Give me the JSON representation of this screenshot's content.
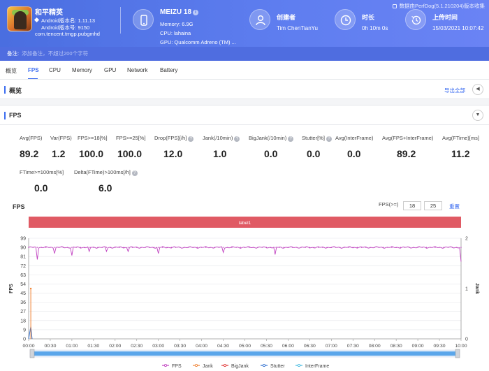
{
  "app": {
    "name": "和平精英",
    "android_version": "Android版本名: 1.11.13",
    "android_code": "Android版本号: 9150",
    "package": "com.tencent.tmgp.pubgmhd"
  },
  "device": {
    "name": "MEIZU 18",
    "memory": "Memory: 6.9G",
    "cpu": "CPU: lahaina",
    "gpu": "GPU: Qualcomm Adreno (TM) ..."
  },
  "creator": {
    "title": "创建者",
    "value": "Tim ChenTianYu"
  },
  "duration": {
    "title": "时长",
    "value": "0h 10m 0s"
  },
  "upload": {
    "title": "上传时间",
    "value": "15/03/2021 10:07:42"
  },
  "version_note": "数据由PerfDog(5.1.210204)版本收集",
  "note": {
    "label": "备注:",
    "placeholder": "添加备注，不超过200个字符"
  },
  "tabs": [
    "概览",
    "FPS",
    "CPU",
    "Memory",
    "GPU",
    "Network",
    "Battery"
  ],
  "overview": {
    "title": "概览",
    "export": "导出全部"
  },
  "fps_section": {
    "title": "FPS"
  },
  "metrics": [
    {
      "label": "Avg(FPS)",
      "value": "89.2"
    },
    {
      "label": "Var(FPS)",
      "value": "1.2"
    },
    {
      "label": "FPS>=18[%]",
      "value": "100.0"
    },
    {
      "label": "FPS>=25[%]",
      "value": "100.0"
    },
    {
      "label": "Drop(FPS)[/h]",
      "value": "12.0"
    },
    {
      "label": "Jank(/10min)",
      "value": "1.0"
    },
    {
      "label": "BigJank(/10min)",
      "value": "0.0"
    },
    {
      "label": "Stutter[%]",
      "value": "0.0"
    },
    {
      "label": "Avg(InterFrame)",
      "value": "0.0"
    },
    {
      "label": "Avg(FPS+InterFrame)",
      "value": "89.2"
    },
    {
      "label": "Avg(FTime)[ms]",
      "value": "11.2"
    },
    {
      "label": "FTime>=100ms[%]",
      "value": "0.0"
    },
    {
      "label": "Delta(FTime)>100ms[/h]",
      "value": "6.0"
    }
  ],
  "chart_controls": {
    "title": "FPS",
    "fps_label": "FPS(>=)",
    "threshold1": "18",
    "threshold2": "25",
    "reset": "重置"
  },
  "colors": {
    "accent": "#3b6cf0",
    "fps": "#c040c0",
    "jank": "#f08030",
    "bigjank": "#e03030",
    "stutter": "#3070d0",
    "interframe": "#40b8e0",
    "label_band": "#e05a64"
  },
  "chart_data": {
    "type": "line",
    "label_band": "label1",
    "ylabel": "FPS",
    "y2label": "Jank",
    "y_ticks": [
      "99",
      "90",
      "81",
      "72",
      "63",
      "54",
      "45",
      "36",
      "27",
      "18",
      "9",
      "0"
    ],
    "y2_ticks": [
      "2",
      "1",
      "0"
    ],
    "ylim": [
      0,
      99
    ],
    "y2lim": [
      0,
      2
    ],
    "x_ticks": [
      "00:00",
      "00:30",
      "01:00",
      "01:30",
      "02:00",
      "02:30",
      "03:00",
      "03:30",
      "04:00",
      "04:30",
      "05:00",
      "05:30",
      "06:00",
      "06:30",
      "07:00",
      "07:30",
      "08:00",
      "08:30",
      "09:00",
      "09:30",
      "10:00"
    ],
    "legend": [
      "FPS",
      "Jank",
      "BigJank",
      "Stutter",
      "InterFrame"
    ],
    "series": [
      {
        "name": "FPS",
        "baseline": 90,
        "dips": [
          [
            0.2,
            78
          ],
          [
            0.6,
            84
          ],
          [
            1.0,
            82
          ],
          [
            1.4,
            86
          ],
          [
            1.8,
            86
          ],
          [
            2.3,
            86
          ],
          [
            3.0,
            84
          ],
          [
            4.5,
            85
          ],
          [
            5.7,
            83
          ],
          [
            10.0,
            76
          ]
        ]
      },
      {
        "name": "Jank",
        "spike_at_min": 0.05,
        "spike_value": 1
      },
      {
        "name": "Stutter",
        "spike_at_min": 0.05,
        "spike_value": 12
      }
    ]
  }
}
